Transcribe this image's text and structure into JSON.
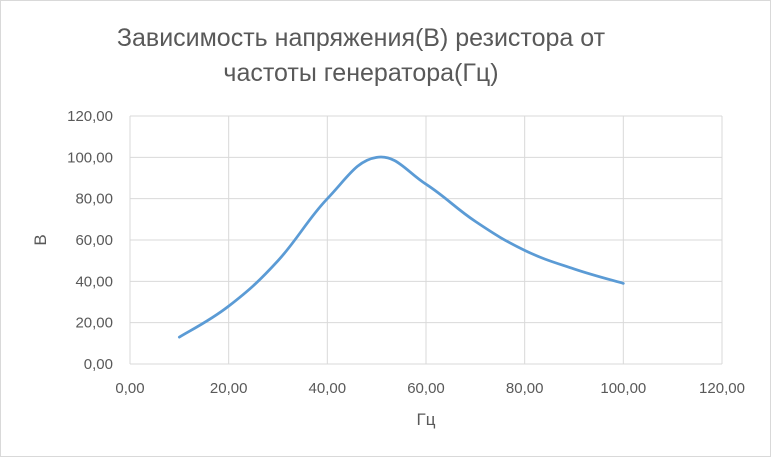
{
  "chart_data": {
    "type": "line",
    "title_lines": [
      "Зависимость напряжения(В) резистора  от",
      "частоты генератора(Гц)"
    ],
    "xlabel": "Гц",
    "ylabel": "В",
    "xlim": [
      0,
      120
    ],
    "ylim": [
      0,
      120
    ],
    "x_ticks": [
      "0,00",
      "20,00",
      "40,00",
      "60,00",
      "80,00",
      "100,00",
      "120,00"
    ],
    "y_ticks": [
      "0,00",
      "20,00",
      "40,00",
      "60,00",
      "80,00",
      "100,00",
      "120,00"
    ],
    "grid": true,
    "smooth": true,
    "series": [
      {
        "color": "#5b9bd5",
        "x": [
          10,
          20,
          30,
          40,
          50,
          60,
          70,
          80,
          90,
          100
        ],
        "y": [
          13,
          28,
          50,
          80,
          100,
          87,
          69,
          55,
          46,
          39
        ]
      }
    ]
  }
}
